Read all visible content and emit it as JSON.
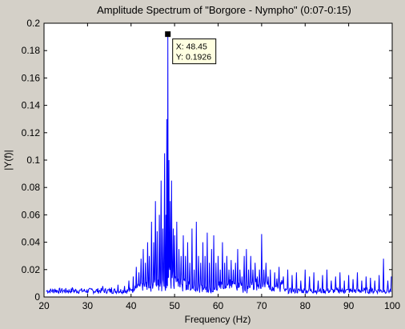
{
  "window": {
    "background": "#d4d0c8"
  },
  "chart_data": {
    "type": "line",
    "title": "Amplitude Spectrum of \"Borgore - Nympho\" (0:07-0:15)",
    "xlabel": "Frequency (Hz)",
    "ylabel": "|Y(f)|",
    "xlim": [
      20,
      100
    ],
    "ylim": [
      0,
      0.2
    ],
    "x_ticks": [
      "20",
      "30",
      "40",
      "50",
      "60",
      "70",
      "80",
      "90",
      "100"
    ],
    "y_ticks": [
      "0",
      "0.02",
      "0.04",
      "0.06",
      "0.08",
      "0.1",
      "0.12",
      "0.14",
      "0.16",
      "0.18",
      "0.2"
    ],
    "grid": false,
    "line_color": "#0000ff",
    "series": [
      {
        "peaks": [
          [
            20.5,
            0.004
          ],
          [
            22.5,
            0.006
          ],
          [
            24.0,
            0.005
          ],
          [
            26.5,
            0.007
          ],
          [
            28.5,
            0.005
          ],
          [
            31.0,
            0.006
          ],
          [
            33.5,
            0.008
          ],
          [
            35.5,
            0.007
          ],
          [
            37.0,
            0.009
          ],
          [
            38.5,
            0.008
          ],
          [
            39.5,
            0.012
          ],
          [
            40.5,
            0.015
          ],
          [
            41.2,
            0.022
          ],
          [
            41.8,
            0.018
          ],
          [
            42.3,
            0.028
          ],
          [
            42.8,
            0.035
          ],
          [
            43.3,
            0.025
          ],
          [
            43.8,
            0.04
          ],
          [
            44.2,
            0.03
          ],
          [
            44.7,
            0.055
          ],
          [
            45.2,
            0.04
          ],
          [
            45.6,
            0.07
          ],
          [
            46.0,
            0.048
          ],
          [
            46.5,
            0.06
          ],
          [
            46.9,
            0.085
          ],
          [
            47.3,
            0.05
          ],
          [
            47.7,
            0.105
          ],
          [
            48.0,
            0.06
          ],
          [
            48.2,
            0.13
          ],
          [
            48.45,
            0.1926
          ],
          [
            48.7,
            0.1
          ],
          [
            49.0,
            0.07
          ],
          [
            49.3,
            0.085
          ],
          [
            49.7,
            0.05
          ],
          [
            50.0,
            0.045
          ],
          [
            50.5,
            0.055
          ],
          [
            51.0,
            0.035
          ],
          [
            51.5,
            0.03
          ],
          [
            52.0,
            0.045
          ],
          [
            52.5,
            0.03
          ],
          [
            53.0,
            0.04
          ],
          [
            53.5,
            0.025
          ],
          [
            54.0,
            0.05
          ],
          [
            54.5,
            0.02
          ],
          [
            55.0,
            0.055
          ],
          [
            55.5,
            0.03
          ],
          [
            56.0,
            0.025
          ],
          [
            56.5,
            0.04
          ],
          [
            57.0,
            0.03
          ],
          [
            57.5,
            0.047
          ],
          [
            58.0,
            0.025
          ],
          [
            58.5,
            0.035
          ],
          [
            59.0,
            0.045
          ],
          [
            59.5,
            0.025
          ],
          [
            60.0,
            0.03
          ],
          [
            60.5,
            0.02
          ],
          [
            61.0,
            0.04
          ],
          [
            61.5,
            0.025
          ],
          [
            62.0,
            0.03
          ],
          [
            62.5,
            0.02
          ],
          [
            63.0,
            0.027
          ],
          [
            63.5,
            0.02
          ],
          [
            64.0,
            0.025
          ],
          [
            64.5,
            0.035
          ],
          [
            65.0,
            0.02
          ],
          [
            65.5,
            0.015
          ],
          [
            66.0,
            0.03
          ],
          [
            66.5,
            0.035
          ],
          [
            67.0,
            0.02
          ],
          [
            67.5,
            0.03
          ],
          [
            68.0,
            0.02
          ],
          [
            68.5,
            0.025
          ],
          [
            69.0,
            0.015
          ],
          [
            69.5,
            0.02
          ],
          [
            70.0,
            0.046
          ],
          [
            70.5,
            0.02
          ],
          [
            71.0,
            0.025
          ],
          [
            71.5,
            0.015
          ],
          [
            72.0,
            0.02
          ],
          [
            73.0,
            0.018
          ],
          [
            74.0,
            0.022
          ],
          [
            75.0,
            0.015
          ],
          [
            76.0,
            0.02
          ],
          [
            77.0,
            0.016
          ],
          [
            78.0,
            0.018
          ],
          [
            79.0,
            0.012
          ],
          [
            80.0,
            0.02
          ],
          [
            81.0,
            0.015
          ],
          [
            82.0,
            0.018
          ],
          [
            83.0,
            0.012
          ],
          [
            84.0,
            0.016
          ],
          [
            85.0,
            0.02
          ],
          [
            86.0,
            0.012
          ],
          [
            87.0,
            0.015
          ],
          [
            88.0,
            0.018
          ],
          [
            89.0,
            0.012
          ],
          [
            90.0,
            0.016
          ],
          [
            91.0,
            0.013
          ],
          [
            92.0,
            0.018
          ],
          [
            93.0,
            0.012
          ],
          [
            94.0,
            0.015
          ],
          [
            95.0,
            0.014
          ],
          [
            96.0,
            0.012
          ],
          [
            97.0,
            0.016
          ],
          [
            98.0,
            0.028
          ],
          [
            99.0,
            0.012
          ],
          [
            99.8,
            0.015
          ]
        ]
      }
    ],
    "datatip": {
      "x_text": "X: 48.45",
      "y_text": "Y: 0.1926",
      "x": 48.45,
      "y": 0.1926
    }
  }
}
